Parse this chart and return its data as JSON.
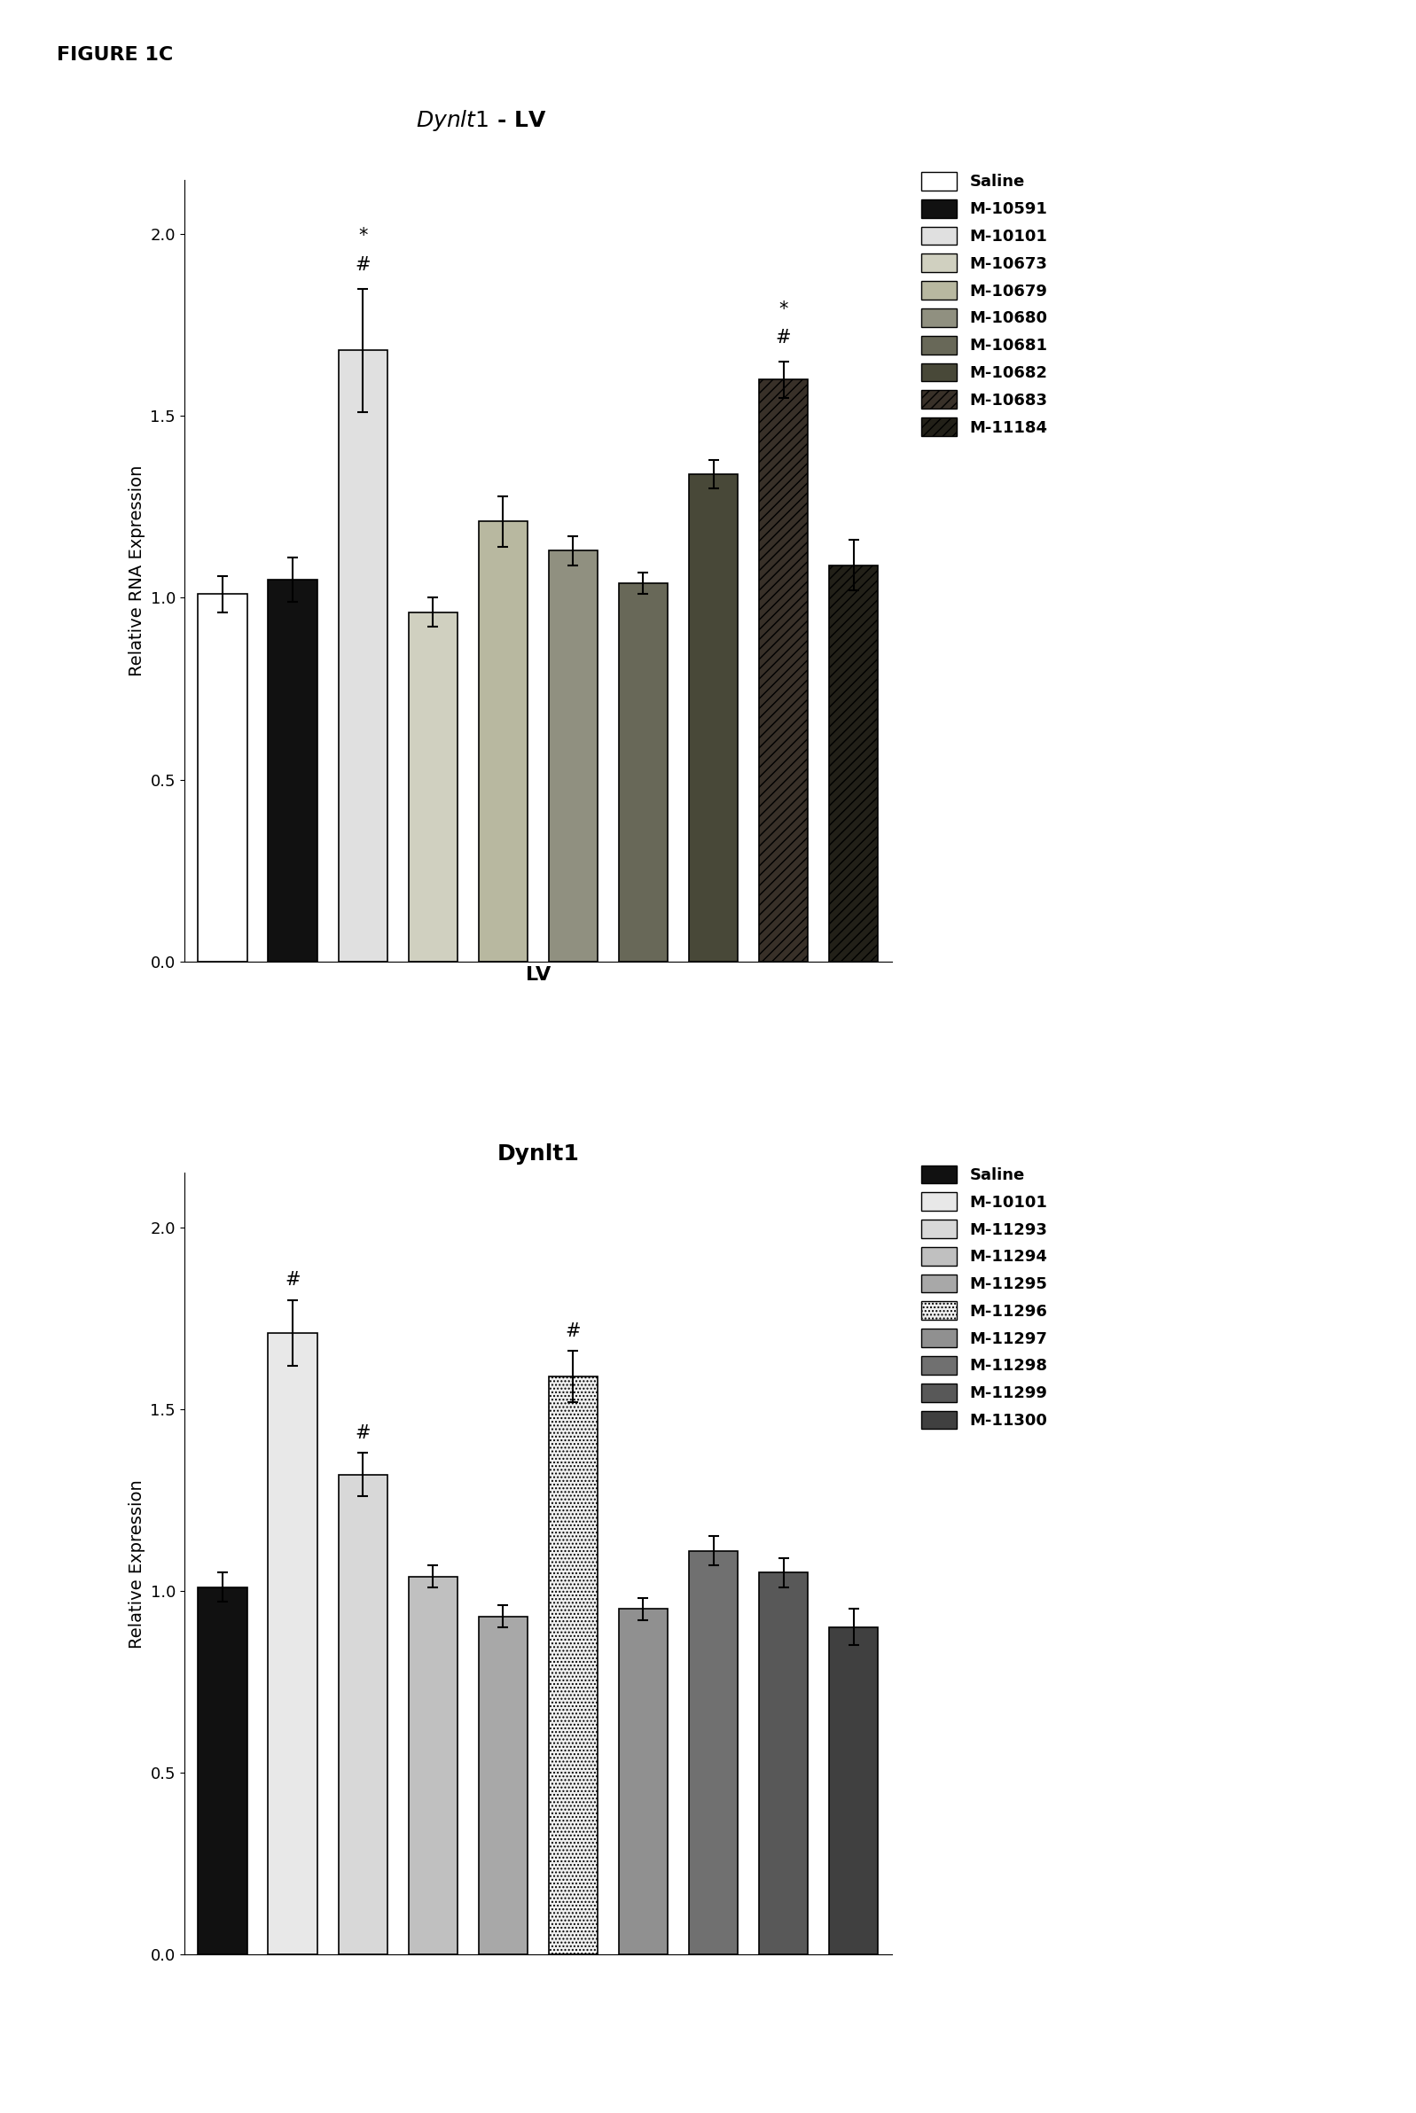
{
  "fig_label": "FIGURE 1C",
  "chart1": {
    "title_italic_part": "Dynlt1",
    "title_normal_part": " - LV",
    "ylabel": "Relative RNA Expression",
    "xlabel": "LV",
    "ylim": [
      0.0,
      2.15
    ],
    "yticks": [
      0.0,
      0.5,
      1.0,
      1.5,
      2.0
    ],
    "bars": [
      {
        "label": "Saline",
        "value": 1.01,
        "error": 0.05,
        "color": "#ffffff",
        "hatch": null,
        "edgecolor": "#000000",
        "ann_star": false,
        "ann_hash": false
      },
      {
        "label": "M-10591",
        "value": 1.05,
        "error": 0.06,
        "color": "#111111",
        "hatch": null,
        "edgecolor": "#000000",
        "ann_star": false,
        "ann_hash": false
      },
      {
        "label": "M-10101",
        "value": 1.68,
        "error": 0.17,
        "color": "#e0e0e0",
        "hatch": null,
        "edgecolor": "#000000",
        "ann_star": true,
        "ann_hash": true
      },
      {
        "label": "M-10673",
        "value": 0.96,
        "error": 0.04,
        "color": "#d0d0c0",
        "hatch": null,
        "edgecolor": "#000000",
        "ann_star": false,
        "ann_hash": false
      },
      {
        "label": "M-10679",
        "value": 1.21,
        "error": 0.07,
        "color": "#b8b8a0",
        "hatch": null,
        "edgecolor": "#000000",
        "ann_star": false,
        "ann_hash": false
      },
      {
        "label": "M-10680",
        "value": 1.13,
        "error": 0.04,
        "color": "#909080",
        "hatch": null,
        "edgecolor": "#000000",
        "ann_star": false,
        "ann_hash": false
      },
      {
        "label": "M-10681",
        "value": 1.04,
        "error": 0.03,
        "color": "#686858",
        "hatch": null,
        "edgecolor": "#000000",
        "ann_star": false,
        "ann_hash": false
      },
      {
        "label": "M-10682",
        "value": 1.34,
        "error": 0.04,
        "color": "#484838",
        "hatch": null,
        "edgecolor": "#000000",
        "ann_star": false,
        "ann_hash": false
      },
      {
        "label": "M-10683",
        "value": 1.6,
        "error": 0.05,
        "color": "#383028",
        "hatch": "///",
        "edgecolor": "#000000",
        "ann_star": true,
        "ann_hash": true
      },
      {
        "label": "M-11184",
        "value": 1.09,
        "error": 0.07,
        "color": "#222018",
        "hatch": "///",
        "edgecolor": "#000000",
        "ann_star": false,
        "ann_hash": false
      }
    ],
    "legend_entries": [
      {
        "label": "Saline",
        "color": "#ffffff",
        "hatch": null,
        "edgecolor": "#000000"
      },
      {
        "label": "M-10591",
        "color": "#111111",
        "hatch": null,
        "edgecolor": "#000000"
      },
      {
        "label": "M-10101",
        "color": "#e0e0e0",
        "hatch": null,
        "edgecolor": "#000000"
      },
      {
        "label": "M-10673",
        "color": "#d0d0c0",
        "hatch": null,
        "edgecolor": "#000000"
      },
      {
        "label": "M-10679",
        "color": "#b8b8a0",
        "hatch": null,
        "edgecolor": "#000000"
      },
      {
        "label": "M-10680",
        "color": "#909080",
        "hatch": null,
        "edgecolor": "#000000"
      },
      {
        "label": "M-10681",
        "color": "#686858",
        "hatch": null,
        "edgecolor": "#000000"
      },
      {
        "label": "M-10682",
        "color": "#484838",
        "hatch": null,
        "edgecolor": "#000000"
      },
      {
        "label": "M-10683",
        "color": "#383028",
        "hatch": "///",
        "edgecolor": "#000000"
      },
      {
        "label": "M-11184",
        "color": "#222018",
        "hatch": "///",
        "edgecolor": "#000000"
      }
    ]
  },
  "chart2": {
    "title": "Dynlt1",
    "ylabel": "Relative Expression",
    "xlabel": "",
    "ylim": [
      0.0,
      2.15
    ],
    "yticks": [
      0.0,
      0.5,
      1.0,
      1.5,
      2.0
    ],
    "bars": [
      {
        "label": "Saline",
        "value": 1.01,
        "error": 0.04,
        "color": "#111111",
        "hatch": null,
        "edgecolor": "#000000",
        "ann_star": false,
        "ann_hash": false
      },
      {
        "label": "M-10101",
        "value": 1.71,
        "error": 0.09,
        "color": "#e8e8e8",
        "hatch": null,
        "edgecolor": "#000000",
        "ann_star": false,
        "ann_hash": true
      },
      {
        "label": "M-11293",
        "value": 1.32,
        "error": 0.06,
        "color": "#d8d8d8",
        "hatch": null,
        "edgecolor": "#000000",
        "ann_star": false,
        "ann_hash": true
      },
      {
        "label": "M-11294",
        "value": 1.04,
        "error": 0.03,
        "color": "#c0c0c0",
        "hatch": null,
        "edgecolor": "#000000",
        "ann_star": false,
        "ann_hash": false
      },
      {
        "label": "M-11295",
        "value": 0.93,
        "error": 0.03,
        "color": "#a8a8a8",
        "hatch": null,
        "edgecolor": "#000000",
        "ann_star": false,
        "ann_hash": false
      },
      {
        "label": "M-11296",
        "value": 1.59,
        "error": 0.07,
        "color": "#f0f0f0",
        "hatch": "....",
        "edgecolor": "#000000",
        "ann_star": false,
        "ann_hash": true
      },
      {
        "label": "M-11297",
        "value": 0.95,
        "error": 0.03,
        "color": "#909090",
        "hatch": null,
        "edgecolor": "#000000",
        "ann_star": false,
        "ann_hash": false
      },
      {
        "label": "M-11298",
        "value": 1.11,
        "error": 0.04,
        "color": "#707070",
        "hatch": null,
        "edgecolor": "#000000",
        "ann_star": false,
        "ann_hash": false
      },
      {
        "label": "M-11299",
        "value": 1.05,
        "error": 0.04,
        "color": "#585858",
        "hatch": null,
        "edgecolor": "#000000",
        "ann_star": false,
        "ann_hash": false
      },
      {
        "label": "M-11300",
        "value": 0.9,
        "error": 0.05,
        "color": "#404040",
        "hatch": null,
        "edgecolor": "#000000",
        "ann_star": false,
        "ann_hash": false
      }
    ],
    "legend_entries": [
      {
        "label": "Saline",
        "color": "#111111",
        "hatch": null,
        "edgecolor": "#000000"
      },
      {
        "label": "M-10101",
        "color": "#e8e8e8",
        "hatch": null,
        "edgecolor": "#000000"
      },
      {
        "label": "M-11293",
        "color": "#d8d8d8",
        "hatch": null,
        "edgecolor": "#000000"
      },
      {
        "label": "M-11294",
        "color": "#c0c0c0",
        "hatch": null,
        "edgecolor": "#000000"
      },
      {
        "label": "M-11295",
        "color": "#a8a8a8",
        "hatch": null,
        "edgecolor": "#000000"
      },
      {
        "label": "M-11296",
        "color": "#f0f0f0",
        "hatch": "....",
        "edgecolor": "#000000"
      },
      {
        "label": "M-11297",
        "color": "#909090",
        "hatch": null,
        "edgecolor": "#000000"
      },
      {
        "label": "M-11298",
        "color": "#707070",
        "hatch": null,
        "edgecolor": "#000000"
      },
      {
        "label": "M-11299",
        "color": "#585858",
        "hatch": null,
        "edgecolor": "#000000"
      },
      {
        "label": "M-11300",
        "color": "#404040",
        "hatch": null,
        "edgecolor": "#000000"
      }
    ]
  },
  "background_color": "#ffffff",
  "bar_width": 0.7,
  "fontsize_title": 18,
  "fontsize_label": 14,
  "fontsize_tick": 13,
  "fontsize_legend": 13,
  "fontsize_annotation": 15
}
